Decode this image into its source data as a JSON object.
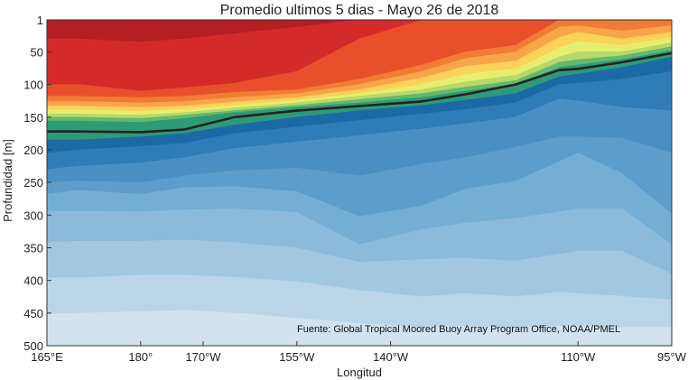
{
  "chart_data": {
    "type": "heatmap",
    "title": "Promedio ultimos 5 dias - Mayo 26 de 2018",
    "xlabel": "Longitud",
    "ylabel": "Profundidad [m]",
    "xlim": [
      165,
      265
    ],
    "ylim": [
      1,
      500
    ],
    "y_inverted": true,
    "x_ticks": [
      {
        "value": 165,
        "label": "165°E"
      },
      {
        "value": 180,
        "label": "180°"
      },
      {
        "value": 190,
        "label": "170°W"
      },
      {
        "value": 205,
        "label": "155°W"
      },
      {
        "value": 220,
        "label": "140°W"
      },
      {
        "value": 250,
        "label": "110°W"
      },
      {
        "value": 265,
        "label": "95°W"
      }
    ],
    "y_ticks": [
      {
        "value": 1,
        "label": "1"
      },
      {
        "value": 50,
        "label": "50"
      },
      {
        "value": 100,
        "label": "100"
      },
      {
        "value": 150,
        "label": "150"
      },
      {
        "value": 200,
        "label": "200"
      },
      {
        "value": 250,
        "label": "250"
      },
      {
        "value": 300,
        "label": "300"
      },
      {
        "value": 350,
        "label": "350"
      },
      {
        "value": 400,
        "label": "400"
      },
      {
        "value": 450,
        "label": "450"
      },
      {
        "value": 500,
        "label": "500"
      }
    ],
    "longitudes": [
      165,
      170,
      180,
      187,
      195,
      205,
      215,
      225,
      232,
      240,
      247,
      250,
      257,
      265
    ],
    "isotherm_line": {
      "x": [
        165,
        170,
        180,
        187,
        195,
        205,
        215,
        225,
        232,
        240,
        247,
        250,
        257,
        265
      ],
      "y": [
        172,
        172,
        173,
        169,
        150,
        140,
        133,
        126,
        115,
        100,
        78,
        76,
        66,
        52
      ]
    },
    "band_colors": [
      "#b51e22",
      "#d42a2a",
      "#e8502b",
      "#f27b35",
      "#f8a54a",
      "#fbd25a",
      "#e7ee6f",
      "#b5d96a",
      "#63ba6b",
      "#2f9a78",
      "#1b6aa6",
      "#2f7cb7",
      "#4a8fc4",
      "#5d9dcb",
      "#74aed4",
      "#8bbadb",
      "#a2c7e1",
      "#bad5e8",
      "#d1e3ef"
    ],
    "band_boundaries": [
      [
        30,
        30,
        35,
        30,
        22,
        12,
        1,
        1,
        1,
        1,
        1,
        1,
        1,
        1
      ],
      [
        100,
        100,
        110,
        105,
        98,
        80,
        30,
        1,
        1,
        1,
        1,
        1,
        1,
        1
      ],
      [
        118,
        118,
        120,
        118,
        112,
        108,
        92,
        70,
        50,
        40,
        1,
        1,
        1,
        1
      ],
      [
        126,
        126,
        128,
        126,
        120,
        114,
        100,
        80,
        60,
        50,
        12,
        10,
        18,
        10
      ],
      [
        133,
        133,
        135,
        133,
        127,
        120,
        108,
        90,
        72,
        64,
        28,
        20,
        30,
        20
      ],
      [
        139,
        139,
        141,
        138,
        132,
        124,
        114,
        100,
        84,
        76,
        44,
        34,
        40,
        28
      ],
      [
        145,
        145,
        147,
        143,
        136,
        128,
        118,
        108,
        96,
        86,
        58,
        50,
        50,
        36
      ],
      [
        150,
        150,
        152,
        147,
        140,
        132,
        123,
        114,
        104,
        94,
        66,
        62,
        56,
        42
      ],
      [
        156,
        156,
        158,
        152,
        143,
        135,
        128,
        120,
        110,
        100,
        74,
        70,
        62,
        48
      ],
      [
        185,
        185,
        180,
        175,
        162,
        150,
        140,
        132,
        124,
        114,
        88,
        84,
        74,
        58
      ],
      [
        205,
        200,
        195,
        190,
        175,
        165,
        155,
        145,
        138,
        128,
        100,
        98,
        92,
        80
      ],
      [
        230,
        225,
        220,
        212,
        198,
        188,
        178,
        168,
        160,
        150,
        122,
        125,
        135,
        140
      ],
      [
        250,
        248,
        250,
        240,
        232,
        228,
        240,
        222,
        212,
        196,
        180,
        180,
        182,
        205
      ],
      [
        268,
        262,
        268,
        258,
        256,
        264,
        302,
        286,
        260,
        248,
        218,
        205,
        236,
        298
      ],
      [
        294,
        294,
        295,
        292,
        290,
        296,
        345,
        322,
        312,
        305,
        295,
        290,
        290,
        345
      ],
      [
        342,
        340,
        340,
        338,
        342,
        350,
        372,
        368,
        366,
        370,
        360,
        355,
        355,
        390
      ],
      [
        396,
        396,
        392,
        392,
        395,
        402,
        415,
        425,
        420,
        425,
        418,
        420,
        424,
        430
      ],
      [
        452,
        450,
        448,
        446,
        450,
        458,
        466,
        472,
        470,
        472,
        470,
        470,
        472,
        472
      ],
      [
        500,
        500,
        500,
        500,
        500,
        500,
        500,
        500,
        500,
        500,
        500,
        500,
        500,
        500
      ]
    ],
    "annotations": [
      "Fuente: Global Tropical Moored Buoy Array Program Office, NOAA/PMEL"
    ],
    "grid": false,
    "legend": "none"
  }
}
